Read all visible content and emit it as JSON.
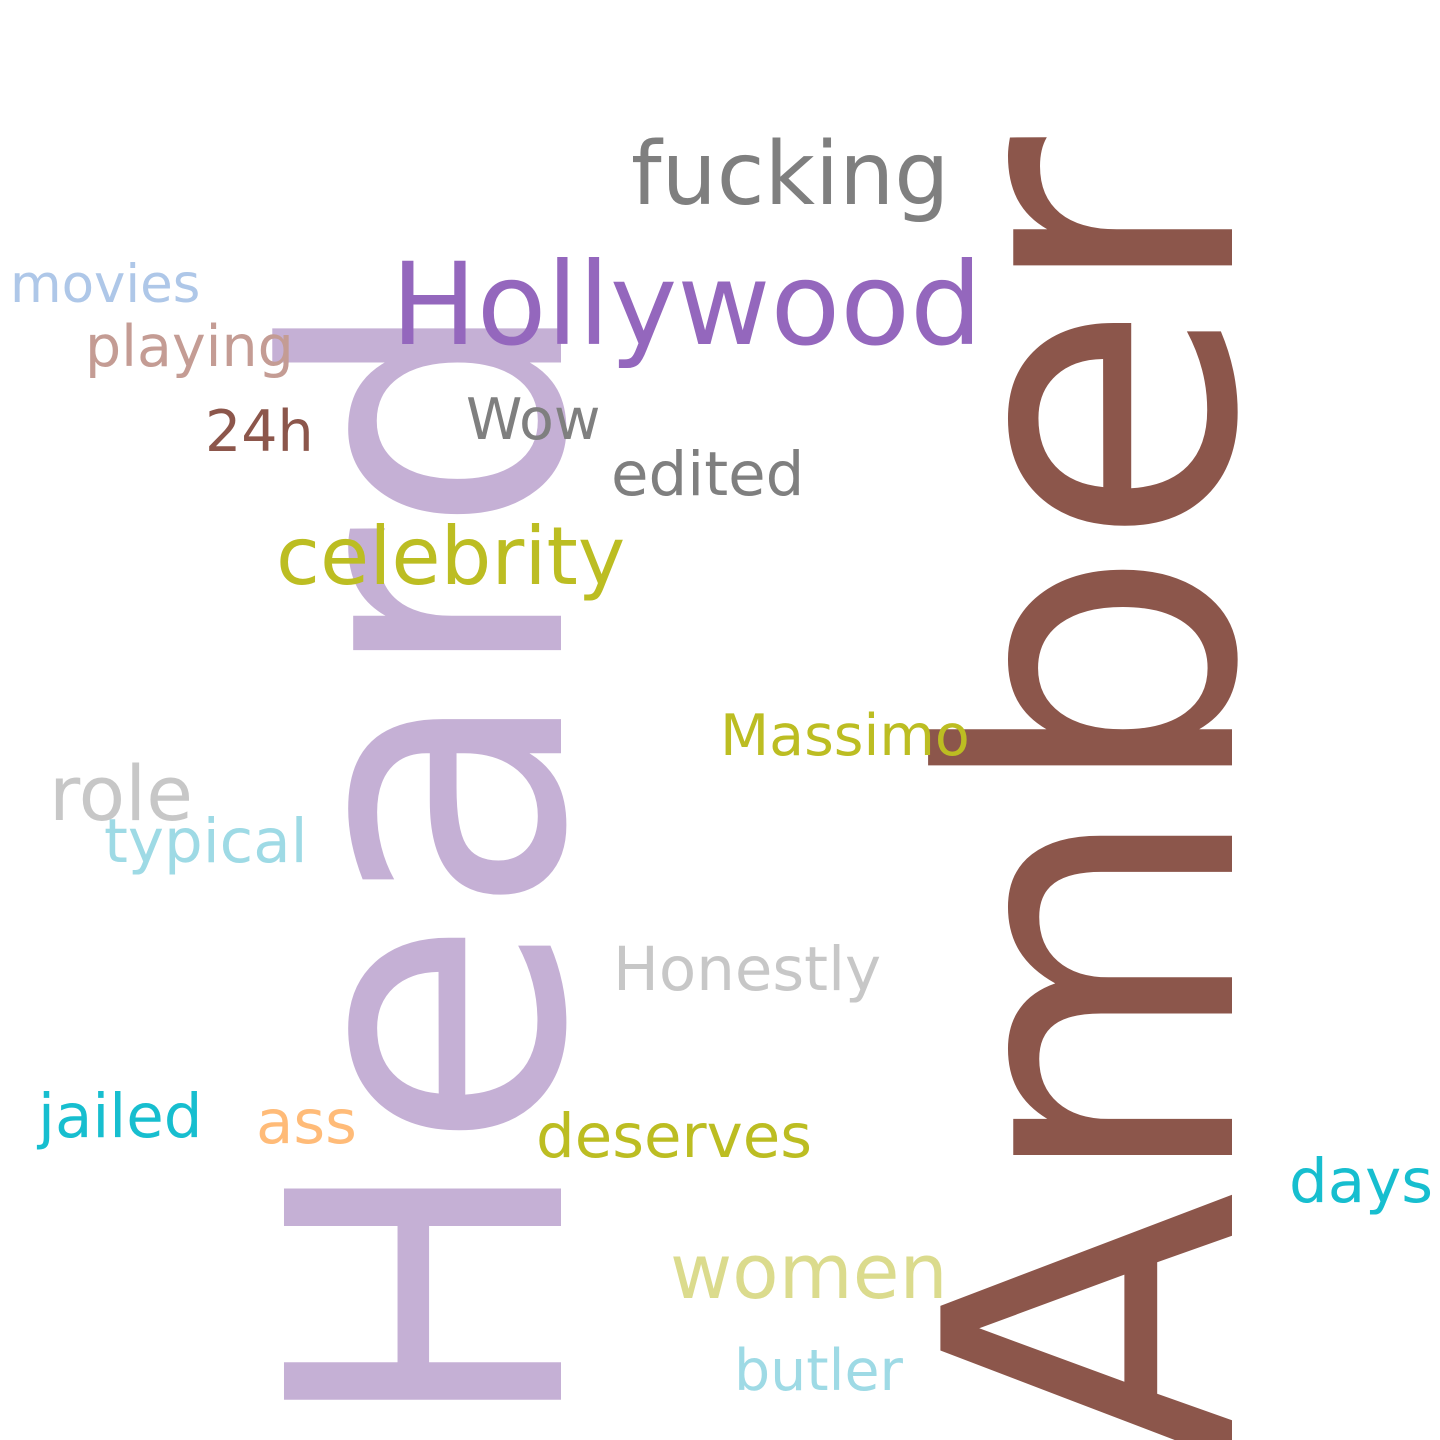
{
  "cloud": {
    "background": "#ffffff",
    "words": [
      {
        "id": "amber",
        "text": "Amber",
        "color": "#8c564b",
        "rotated": true
      },
      {
        "id": "heard",
        "text": "Heard",
        "color": "#c5b0d5",
        "rotated": true
      },
      {
        "id": "hollywood",
        "text": "Hollywood",
        "color": "#9467bd"
      },
      {
        "id": "fucking",
        "text": "fucking",
        "color": "#7f7f7f"
      },
      {
        "id": "celebrity",
        "text": "celebrity",
        "color": "#bcbd22"
      },
      {
        "id": "women",
        "text": "women",
        "color": "#dbdb8d"
      },
      {
        "id": "role",
        "text": "role",
        "color": "#c7c7c7"
      },
      {
        "id": "honestly",
        "text": "Honestly",
        "color": "#c7c7c7"
      },
      {
        "id": "deserves",
        "text": "deserves",
        "color": "#bcbd22"
      },
      {
        "id": "massimo",
        "text": "Massimo",
        "color": "#bcbd22"
      },
      {
        "id": "jailed",
        "text": "jailed",
        "color": "#17becf"
      },
      {
        "id": "typical",
        "text": "typical",
        "color": "#9edae5"
      },
      {
        "id": "butler",
        "text": "butler",
        "color": "#9edae5"
      },
      {
        "id": "days",
        "text": "days",
        "color": "#17becf"
      },
      {
        "id": "playing",
        "text": "playing",
        "color": "#c49c94"
      },
      {
        "id": "movies",
        "text": "movies",
        "color": "#aec7e8"
      },
      {
        "id": "edited",
        "text": "edited",
        "color": "#7f7f7f"
      },
      {
        "id": "wow",
        "text": "Wow",
        "color": "#7f7f7f"
      },
      {
        "id": "ass",
        "text": "ass",
        "color": "#ffbb78"
      },
      {
        "id": "24h",
        "text": "24h",
        "color": "#8c564b"
      }
    ]
  }
}
